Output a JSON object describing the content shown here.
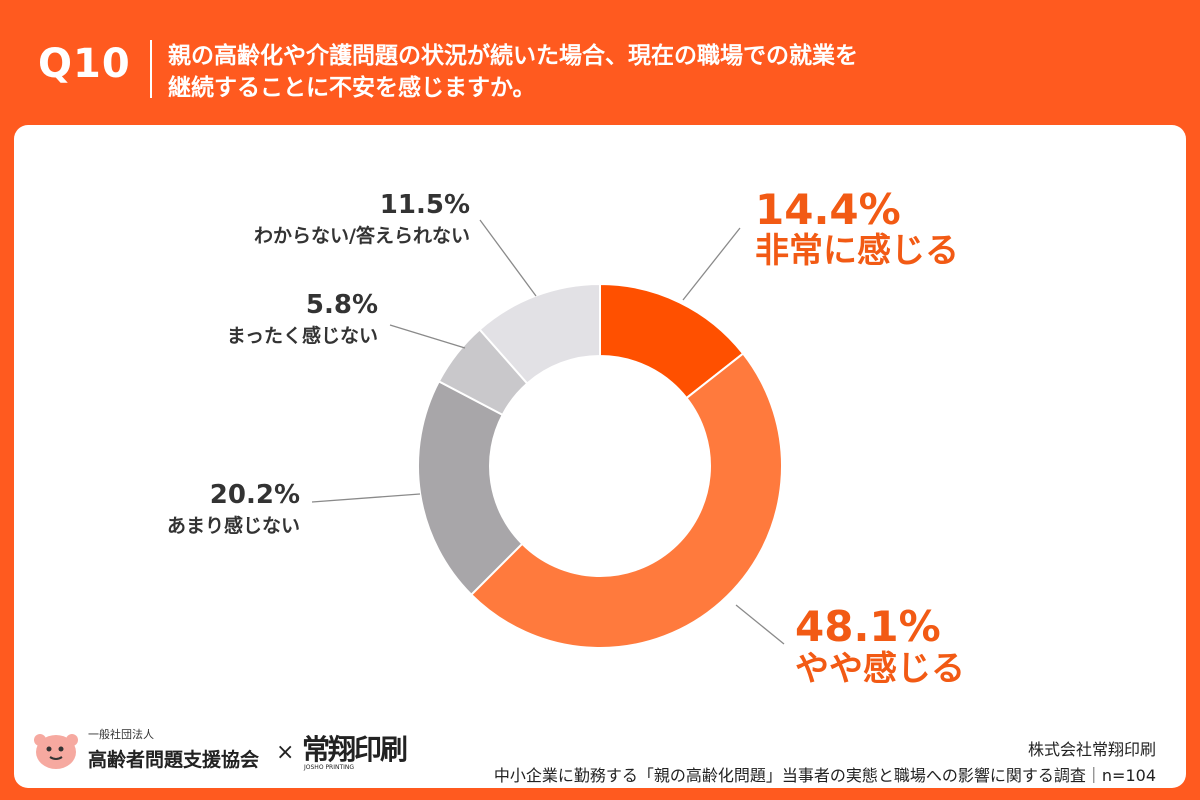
{
  "header": {
    "q_label": "Q10",
    "question_line1": "親の高齢化や介護問題の状況が続いた場合、現在の職場での就業を",
    "question_line2": "継続することに不安を感じますか。"
  },
  "chart_data": {
    "type": "pie",
    "subtype": "donut",
    "slices": [
      {
        "label": "非常に感じる",
        "value": 14.4,
        "pct_text": "14.4%",
        "color": "#ff5000"
      },
      {
        "label": "やや感じる",
        "value": 48.1,
        "pct_text": "48.1%",
        "color": "#ff7a3d"
      },
      {
        "label": "あまり感じない",
        "value": 20.2,
        "pct_text": "20.2%",
        "color": "#a8a6a9"
      },
      {
        "label": "まったく感じない",
        "value": 5.8,
        "pct_text": "5.8%",
        "color": "#c9c8cb"
      },
      {
        "label": "わからない/答えられない",
        "value": 11.5,
        "pct_text": "11.5%",
        "color": "#e2e1e5"
      }
    ]
  },
  "footer": {
    "org_small": "一般社団法人",
    "org_name": "高齢者問題支援協会",
    "times": "×",
    "printing_logo": "常翔印刷",
    "printing_sub": "JOSHO PRINTING",
    "company": "株式会社常翔印刷",
    "survey": "中小企業に勤務する「親の高齢化問題」当事者の実態と職場への影響に関する調査｜n=104"
  },
  "colors": {
    "brand": "#ff5a1f",
    "highlight_text": "#f25a14",
    "muted_text": "#333333"
  }
}
